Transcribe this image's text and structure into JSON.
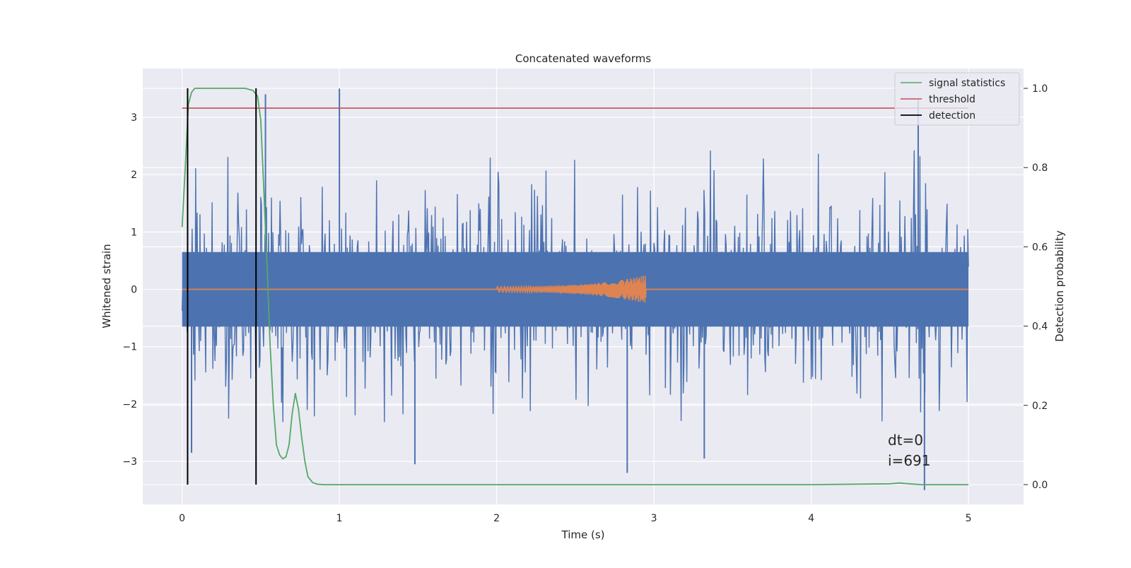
{
  "chart_data": {
    "type": "line",
    "title": "Concatenated waveforms",
    "xlabel": "Time (s)",
    "ylabel": "Whitened strain",
    "ylabel_right": "Detection probability",
    "xlim": [
      -0.25,
      5.35
    ],
    "ylim": [
      -3.75,
      3.85
    ],
    "ylim_right": [
      -0.05,
      1.05
    ],
    "x_ticks": [
      0,
      1,
      2,
      3,
      4,
      5
    ],
    "x_tick_labels": [
      "0",
      "1",
      "2",
      "3",
      "4",
      "5"
    ],
    "y_ticks": [
      -3,
      -2,
      -1,
      0,
      1,
      2,
      3
    ],
    "y_tick_labels": [
      "−3",
      "−2",
      "−1",
      "0",
      "1",
      "2",
      "3"
    ],
    "y_right_ticks": [
      0.0,
      0.2,
      0.4,
      0.6,
      0.8,
      1.0
    ],
    "y_right_tick_labels": [
      "0.0",
      "0.2",
      "0.4",
      "0.6",
      "0.8",
      "1.0"
    ],
    "grid": true,
    "legend_position": "top-right",
    "series": [
      {
        "name": "",
        "color": "#4c72b0",
        "kind": "noise",
        "x_range": [
          0,
          5
        ],
        "core_amplitude": 0.65,
        "typical_peak": 2.3,
        "notable_peaks": [
          {
            "x": 1.0,
            "y": 3.5
          },
          {
            "x": 0.53,
            "y": 3.4
          },
          {
            "x": 4.68,
            "y": 3.3
          },
          {
            "x": 2.83,
            "y": -3.2
          },
          {
            "x": 4.72,
            "y": -3.5
          },
          {
            "x": 0.06,
            "y": -2.85
          },
          {
            "x": 1.48,
            "y": -3.05
          },
          {
            "x": 3.32,
            "y": -2.95
          }
        ]
      },
      {
        "name": "",
        "color": "#dd8452",
        "kind": "chirp",
        "x_range": [
          2.0,
          2.95
        ],
        "amplitude_start": 0.05,
        "amplitude_end": 0.25,
        "baseline_range": [
          0,
          5
        ]
      },
      {
        "name": "signal statistics",
        "color": "#55a868",
        "axis": "right",
        "x": [
          0,
          0.02,
          0.04,
          0.06,
          0.08,
          0.1,
          0.4,
          0.45,
          0.48,
          0.5,
          0.52,
          0.54,
          0.56,
          0.58,
          0.6,
          0.62,
          0.64,
          0.66,
          0.68,
          0.7,
          0.72,
          0.74,
          0.76,
          0.78,
          0.8,
          0.83,
          0.86,
          0.9,
          1.0,
          2.0,
          3.0,
          4.0,
          4.5,
          4.56,
          4.62,
          4.7,
          5.0
        ],
        "y": [
          0.65,
          0.8,
          0.96,
          0.99,
          1.0,
          1.0,
          1.0,
          0.995,
          0.98,
          0.92,
          0.74,
          0.55,
          0.35,
          0.2,
          0.1,
          0.075,
          0.065,
          0.07,
          0.1,
          0.18,
          0.23,
          0.19,
          0.12,
          0.06,
          0.02,
          0.005,
          0.001,
          0.0,
          0.0,
          0.0,
          0.0,
          0.0,
          0.002,
          0.004,
          0.002,
          0.0,
          0.0
        ]
      },
      {
        "name": "threshold",
        "color": "#c44e52",
        "axis": "right",
        "x": [
          0,
          5
        ],
        "y": [
          0.95,
          0.95
        ]
      },
      {
        "name": "detection",
        "color": "#000000",
        "axis": "right",
        "vlines": [
          0.035,
          0.47
        ],
        "ymin": 0.0,
        "ymax": 1.0
      }
    ],
    "annotations": [
      "dt=0",
      "i=691"
    ]
  }
}
